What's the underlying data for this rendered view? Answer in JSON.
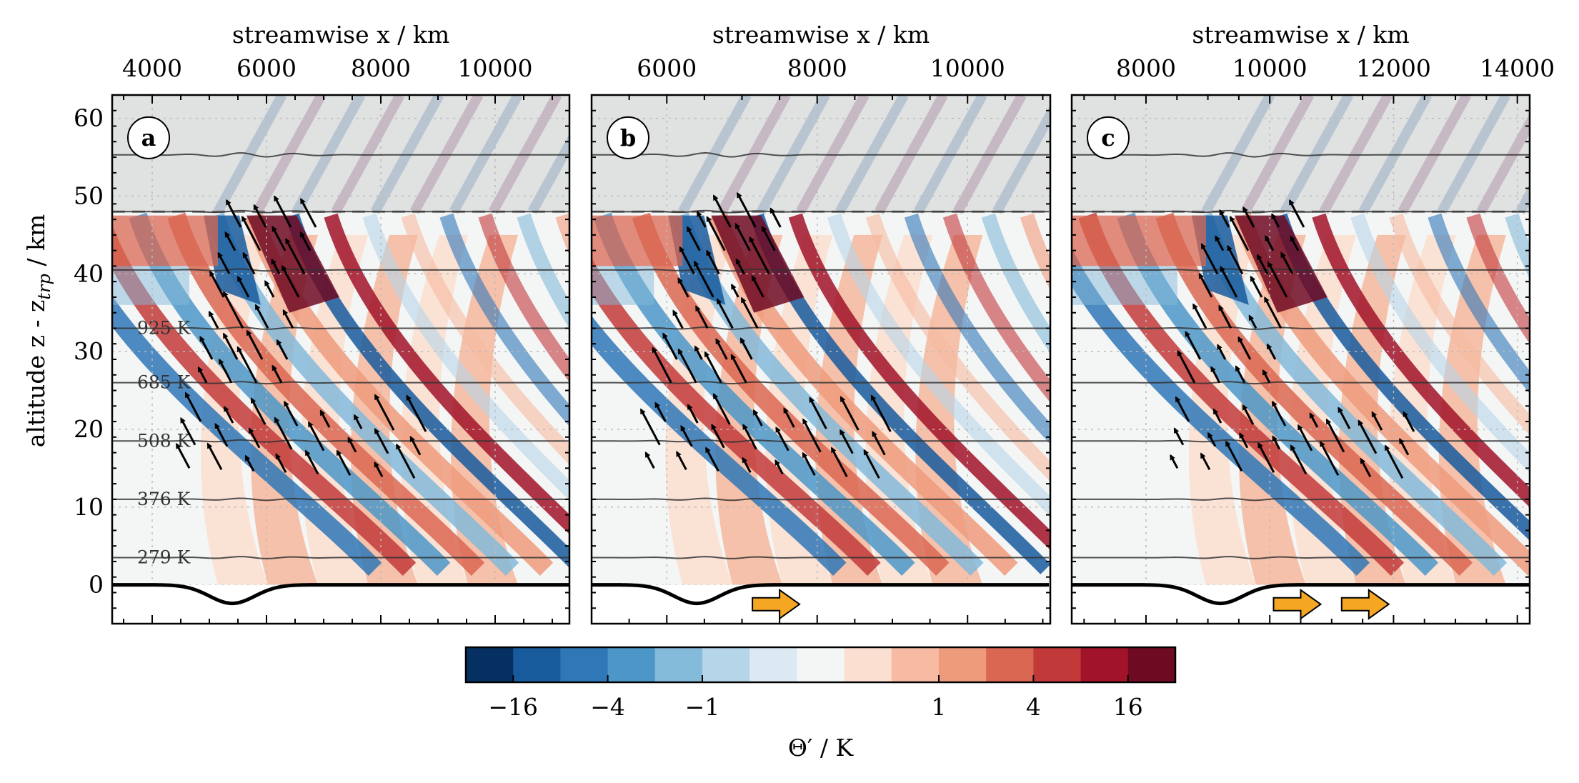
{
  "chart_data": {
    "type": "heatmap",
    "description_free": true,
    "y_axis": {
      "label_main": "altitude z - z",
      "label_sub": "trp",
      "label_unit": " / km",
      "range": [
        -5,
        63
      ],
      "ticks": [
        0,
        10,
        20,
        30,
        40,
        50,
        60
      ]
    },
    "sponge_layer_bottom": 48,
    "panels": [
      {
        "letter": "a",
        "top_axis_label": "streamwise x / km",
        "x_range": [
          3300,
          11300
        ],
        "x_ticks": [
          4000,
          6000,
          8000,
          10000
        ],
        "orography_center": 5400,
        "propagation_arrows": []
      },
      {
        "letter": "b",
        "top_axis_label": "streamwise x / km",
        "x_range": [
          5000,
          11100
        ],
        "x_ticks": [
          6000,
          8000,
          10000
        ],
        "orography_center": 6400,
        "propagation_arrows": [
          7500
        ]
      },
      {
        "letter": "c",
        "top_axis_label": "streamwise x / km",
        "x_range": [
          6800,
          14200
        ],
        "x_ticks": [
          8000,
          10000,
          12000,
          14000
        ],
        "orography_center": 9200,
        "propagation_arrows": [
          10500,
          11600
        ]
      }
    ],
    "isentropes": [
      {
        "z": 3.5,
        "label": "279 K"
      },
      {
        "z": 11,
        "label": "376 K"
      },
      {
        "z": 18.5,
        "label": "508 K"
      },
      {
        "z": 26,
        "label": "685 K"
      },
      {
        "z": 33,
        "label": "925 K"
      },
      {
        "z": 40.5,
        "label": ""
      },
      {
        "z": 48,
        "label": ""
      },
      {
        "z": 55.3,
        "label": ""
      }
    ],
    "colorbar": {
      "label": "Θ′ / K",
      "colors": [
        "#053061",
        "#185b9d",
        "#2f77b7",
        "#4c97c8",
        "#84bada",
        "#b5d5e8",
        "#dce9f3",
        "#f4f6f6",
        "#fbe0d2",
        "#f6bba2",
        "#ee9b7c",
        "#da6752",
        "#c2393a",
        "#a11329",
        "#6f0a23"
      ],
      "tick_labels": [
        "−16",
        "−4",
        "−1",
        "1",
        "4",
        "16"
      ],
      "tick_boundaries": [
        1,
        3,
        5,
        10,
        12,
        14
      ]
    }
  }
}
